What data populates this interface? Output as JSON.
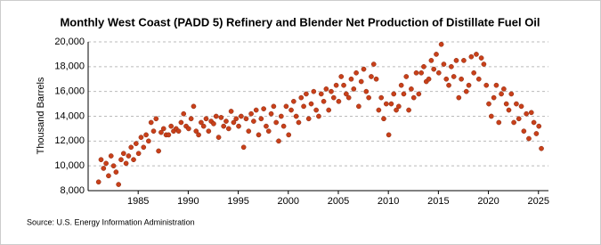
{
  "chart_data": {
    "type": "scatter",
    "title": "Monthly West Coast (PADD 5) Refinery and Blender Net Production of Distillate Fuel Oil",
    "y_label": "Thousand Barrels",
    "source": "Source: U.S. Energy Information Administration",
    "color": "#c8401a",
    "grid": true,
    "xlim": [
      1980,
      2026
    ],
    "ylim": [
      8000,
      20000
    ],
    "xticks": [
      1985,
      1990,
      1995,
      2000,
      2005,
      2010,
      2015,
      2020,
      2025
    ],
    "yticks": [
      {
        "value": 8000,
        "label": "8,000"
      },
      {
        "value": 10000,
        "label": "10,000"
      },
      {
        "value": 12000,
        "label": "12,000"
      },
      {
        "value": 14000,
        "label": "14,000"
      },
      {
        "value": 16000,
        "label": "16,000"
      },
      {
        "value": 18000,
        "label": "18,000"
      },
      {
        "value": 20000,
        "label": "20,000"
      }
    ],
    "x": [
      1981.04,
      1981.29,
      1981.54,
      1981.79,
      1982.04,
      1982.29,
      1982.54,
      1982.79,
      1983.04,
      1983.29,
      1983.54,
      1983.79,
      1984.04,
      1984.29,
      1984.54,
      1984.79,
      1985.04,
      1985.29,
      1985.54,
      1985.79,
      1986.04,
      1986.29,
      1986.54,
      1986.79,
      1987.04,
      1987.29,
      1987.54,
      1987.79,
      1988.04,
      1988.29,
      1988.54,
      1988.79,
      1989.04,
      1989.29,
      1989.54,
      1989.79,
      1990.04,
      1990.29,
      1990.54,
      1990.79,
      1991.04,
      1991.29,
      1991.54,
      1991.79,
      1992.04,
      1992.29,
      1992.54,
      1992.79,
      1993.04,
      1993.29,
      1993.54,
      1993.79,
      1994.04,
      1994.29,
      1994.54,
      1994.79,
      1995.04,
      1995.29,
      1995.54,
      1995.79,
      1996.04,
      1996.29,
      1996.54,
      1996.79,
      1997.04,
      1997.29,
      1997.54,
      1997.79,
      1998.04,
      1998.29,
      1998.54,
      1998.79,
      1999.04,
      1999.29,
      1999.54,
      1999.79,
      2000.04,
      2000.29,
      2000.54,
      2000.79,
      2001.04,
      2001.29,
      2001.54,
      2001.79,
      2002.04,
      2002.29,
      2002.54,
      2002.79,
      2003.04,
      2003.29,
      2003.54,
      2003.79,
      2004.04,
      2004.29,
      2004.54,
      2004.79,
      2005.04,
      2005.29,
      2005.54,
      2005.79,
      2006.04,
      2006.29,
      2006.54,
      2006.79,
      2007.04,
      2007.29,
      2007.54,
      2007.79,
      2008.04,
      2008.29,
      2008.54,
      2008.79,
      2009.04,
      2009.29,
      2009.54,
      2009.79,
      2010.04,
      2010.29,
      2010.54,
      2010.79,
      2011.04,
      2011.29,
      2011.54,
      2011.79,
      2012.04,
      2012.29,
      2012.54,
      2012.79,
      2013.04,
      2013.29,
      2013.54,
      2013.79,
      2014.04,
      2014.29,
      2014.54,
      2014.79,
      2015.04,
      2015.29,
      2015.54,
      2015.79,
      2016.04,
      2016.29,
      2016.54,
      2016.79,
      2017.04,
      2017.29,
      2017.54,
      2017.79,
      2018.04,
      2018.29,
      2018.54,
      2018.79,
      2019.04,
      2019.29,
      2019.54,
      2019.79,
      2020.04,
      2020.29,
      2020.54,
      2020.79,
      2021.04,
      2021.29,
      2021.54,
      2021.79,
      2022.04,
      2022.29,
      2022.54,
      2022.79,
      2023.04,
      2023.29,
      2023.54,
      2023.79,
      2024.04,
      2024.29,
      2024.54,
      2024.79,
      2025.04,
      2025.29
    ],
    "values": [
      8700,
      10500,
      9800,
      10200,
      9200,
      10800,
      10000,
      9500,
      8500,
      10500,
      11000,
      10200,
      10800,
      11500,
      10500,
      11800,
      11000,
      12300,
      11500,
      12500,
      12000,
      13500,
      12800,
      13800,
      11200,
      12700,
      13000,
      12500,
      12500,
      13200,
      12800,
      13000,
      12800,
      13500,
      14200,
      13200,
      13000,
      13800,
      14800,
      12800,
      12500,
      13500,
      13200,
      13800,
      12800,
      13600,
      13400,
      14000,
      12300,
      13900,
      13200,
      13600,
      13000,
      14400,
      13500,
      13800,
      13200,
      14000,
      11500,
      13800,
      12800,
      14200,
      13600,
      14500,
      12500,
      13800,
      14600,
      13200,
      12800,
      14200,
      14800,
      13500,
      12000,
      14000,
      13200,
      14800,
      12500,
      14500,
      15200,
      14000,
      13500,
      15500,
      14800,
      15800,
      13800,
      15000,
      16000,
      14500,
      14000,
      15800,
      15200,
      16200,
      14500,
      16000,
      15500,
      16500,
      15200,
      17200,
      16500,
      15800,
      15500,
      17000,
      16200,
      17500,
      14800,
      16800,
      17800,
      16000,
      15500,
      17200,
      18200,
      17000,
      14500,
      15500,
      13800,
      15000,
      12500,
      15000,
      15800,
      14500,
      14800,
      16500,
      15800,
      17200,
      14500,
      16200,
      15500,
      17500,
      15800,
      17500,
      18000,
      16800,
      17000,
      18500,
      17800,
      19000,
      17500,
      19800,
      18200,
      17000,
      16500,
      18000,
      17200,
      18500,
      15500,
      17000,
      18500,
      16000,
      16500,
      18800,
      17500,
      19000,
      17000,
      18700,
      18200,
      16500,
      15000,
      14000,
      15500,
      16500,
      13500,
      15800,
      16200,
      15000,
      14500,
      15800,
      13500,
      15000,
      13800,
      14800,
      12800,
      14200,
      12200,
      14300,
      13500,
      12600,
      13200,
      11400
    ]
  }
}
